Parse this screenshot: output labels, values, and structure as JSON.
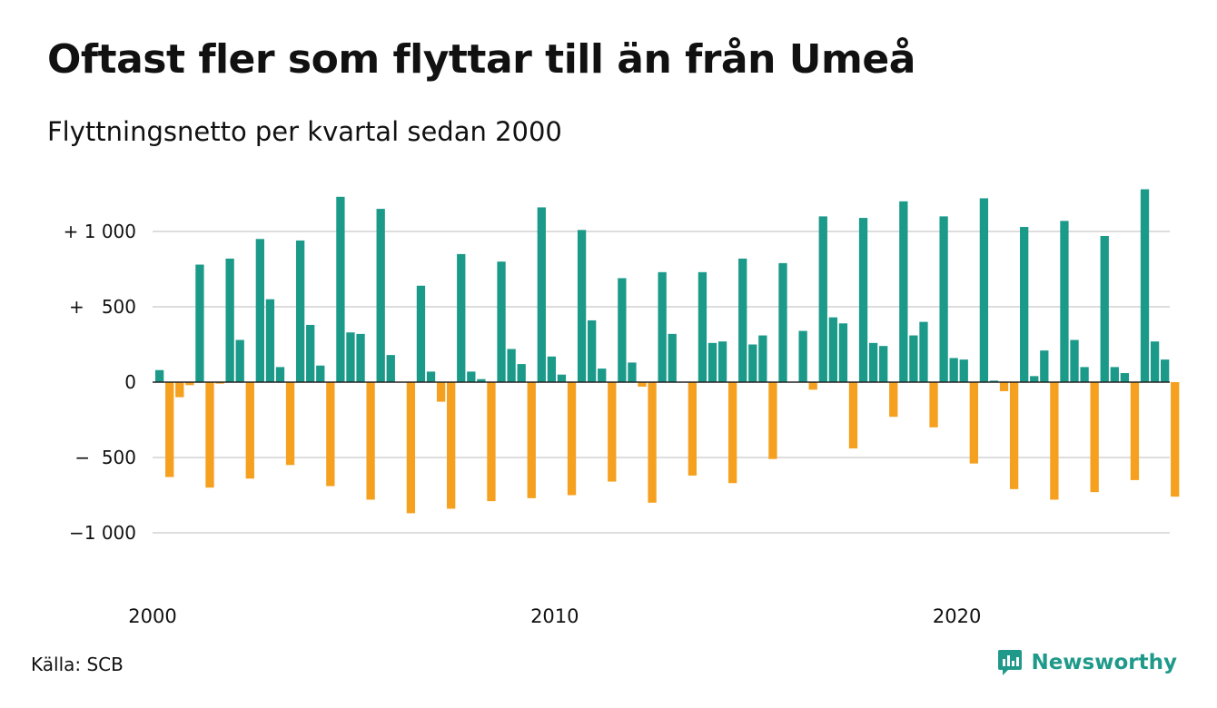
{
  "title": "Oftast fler som flyttar till än från Umeå",
  "subtitle": "Flyttningsnetto per kvartal sedan 2000",
  "source": "Källa: SCB",
  "brand": {
    "name": "Newsworthy",
    "icon": "newsworthy-logo-icon",
    "color": "#1f9a8a"
  },
  "colors": {
    "positive": "#1b9a8a",
    "negative": "#f5a01f",
    "grid": "#dddddd",
    "zero_line": "#222222"
  },
  "chart_data": {
    "type": "bar",
    "title": "Oftast fler som flyttar till än från Umeå",
    "subtitle": "Flyttningsnetto per kvartal sedan 2000",
    "xlabel": "",
    "ylabel": "",
    "x_start": "2000 Q1",
    "frequency": "quarterly",
    "x_ticks": [
      {
        "label": "2000",
        "quarter_index": 0
      },
      {
        "label": "2010",
        "quarter_index": 40
      },
      {
        "label": "2020",
        "quarter_index": 80
      }
    ],
    "y_ticks": [
      {
        "label": "+ 1 000",
        "value": 1000
      },
      {
        "label": "+   500",
        "value": 500
      },
      {
        "label": "0",
        "value": 0
      },
      {
        "label": "−  500",
        "value": -500
      },
      {
        "label": "−1 000",
        "value": -1000
      }
    ],
    "ylim": [
      -1300,
      1300
    ],
    "grid": true,
    "legend": "none",
    "values": [
      80,
      -630,
      -100,
      -20,
      780,
      -700,
      -10,
      820,
      280,
      -640,
      950,
      550,
      100,
      -550,
      940,
      380,
      110,
      -690,
      1230,
      330,
      320,
      -780,
      1150,
      180,
      0,
      -870,
      640,
      70,
      -130,
      -840,
      850,
      70,
      20,
      -790,
      800,
      220,
      120,
      -770,
      1160,
      170,
      50,
      -750,
      1010,
      410,
      90,
      -660,
      690,
      130,
      -30,
      -800,
      730,
      320,
      0,
      -620,
      730,
      260,
      270,
      -670,
      820,
      250,
      310,
      -510,
      790,
      0,
      340,
      -50,
      1100,
      430,
      390,
      -440,
      1090,
      260,
      240,
      -230,
      1200,
      310,
      400,
      -300,
      1100,
      160,
      150,
      -540,
      1220,
      10,
      -60,
      -710,
      1030,
      40,
      210,
      -780,
      1070,
      280,
      100,
      -730,
      970,
      100,
      60,
      -650,
      1280,
      270,
      150,
      -760
    ]
  }
}
